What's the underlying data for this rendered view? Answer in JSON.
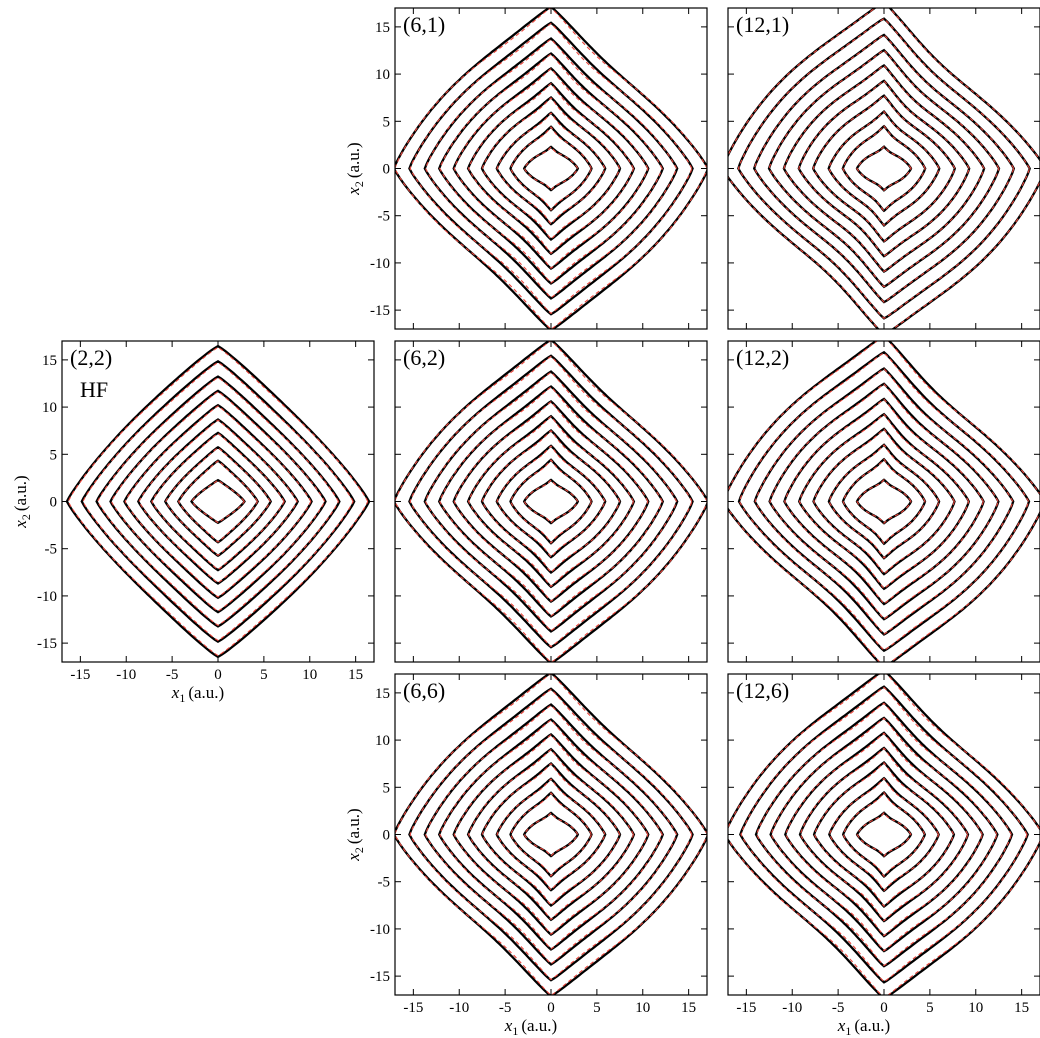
{
  "chart_data": {
    "type": "contour",
    "xlabel_var": "x",
    "xlabel_sub": "1",
    "ylabel_var": "x",
    "ylabel_sub": "2",
    "unit_label": "(a.u.)",
    "xlim": [
      -17,
      17
    ],
    "ylim": [
      -17,
      17
    ],
    "ticks": [
      -15,
      -10,
      -5,
      0,
      5,
      10,
      15
    ],
    "tick_labels": [
      "-15",
      "-10",
      "-5",
      "0",
      "5",
      "10",
      "15"
    ],
    "contour_levels": [
      2.5,
      4.3,
      5.7,
      7.2,
      8.6,
      10.1,
      11.6,
      13.1,
      14.7,
      16.3
    ],
    "series_colors": {
      "exact": "#000000",
      "approx": "#e8443a"
    },
    "panels": [
      {
        "label": "(6,1)",
        "sublabel": "",
        "row": 0,
        "col": 1,
        "twist": 0.2,
        "bulge": 0.1,
        "dash_dev": 0.55
      },
      {
        "label": "(12,1)",
        "sublabel": "",
        "row": 0,
        "col": 2,
        "twist": 0.24,
        "bulge": 0.16,
        "dash_dev": 0.08
      },
      {
        "label": "(2,2)",
        "sublabel": "HF",
        "row": 1,
        "col": 0,
        "twist": 0.05,
        "bulge": 0.02,
        "dash_dev": 0.85
      },
      {
        "label": "(6,2)",
        "sublabel": "",
        "row": 1,
        "col": 1,
        "twist": 0.2,
        "bulge": 0.1,
        "dash_dev": 0.5
      },
      {
        "label": "(12,2)",
        "sublabel": "",
        "row": 1,
        "col": 2,
        "twist": 0.23,
        "bulge": 0.15,
        "dash_dev": 0.3
      },
      {
        "label": "(6,6)",
        "sublabel": "",
        "row": 2,
        "col": 1,
        "twist": 0.2,
        "bulge": 0.1,
        "dash_dev": 0.5
      },
      {
        "label": "(12,6)",
        "sublabel": "",
        "row": 2,
        "col": 2,
        "twist": 0.22,
        "bulge": 0.13,
        "dash_dev": 0.45
      }
    ],
    "x_axis_labeled": [
      "(2,2)",
      "(6,6)",
      "(12,6)"
    ],
    "y_axis_labeled": [
      "(6,1)",
      "(2,2)",
      "(6,6)"
    ]
  }
}
